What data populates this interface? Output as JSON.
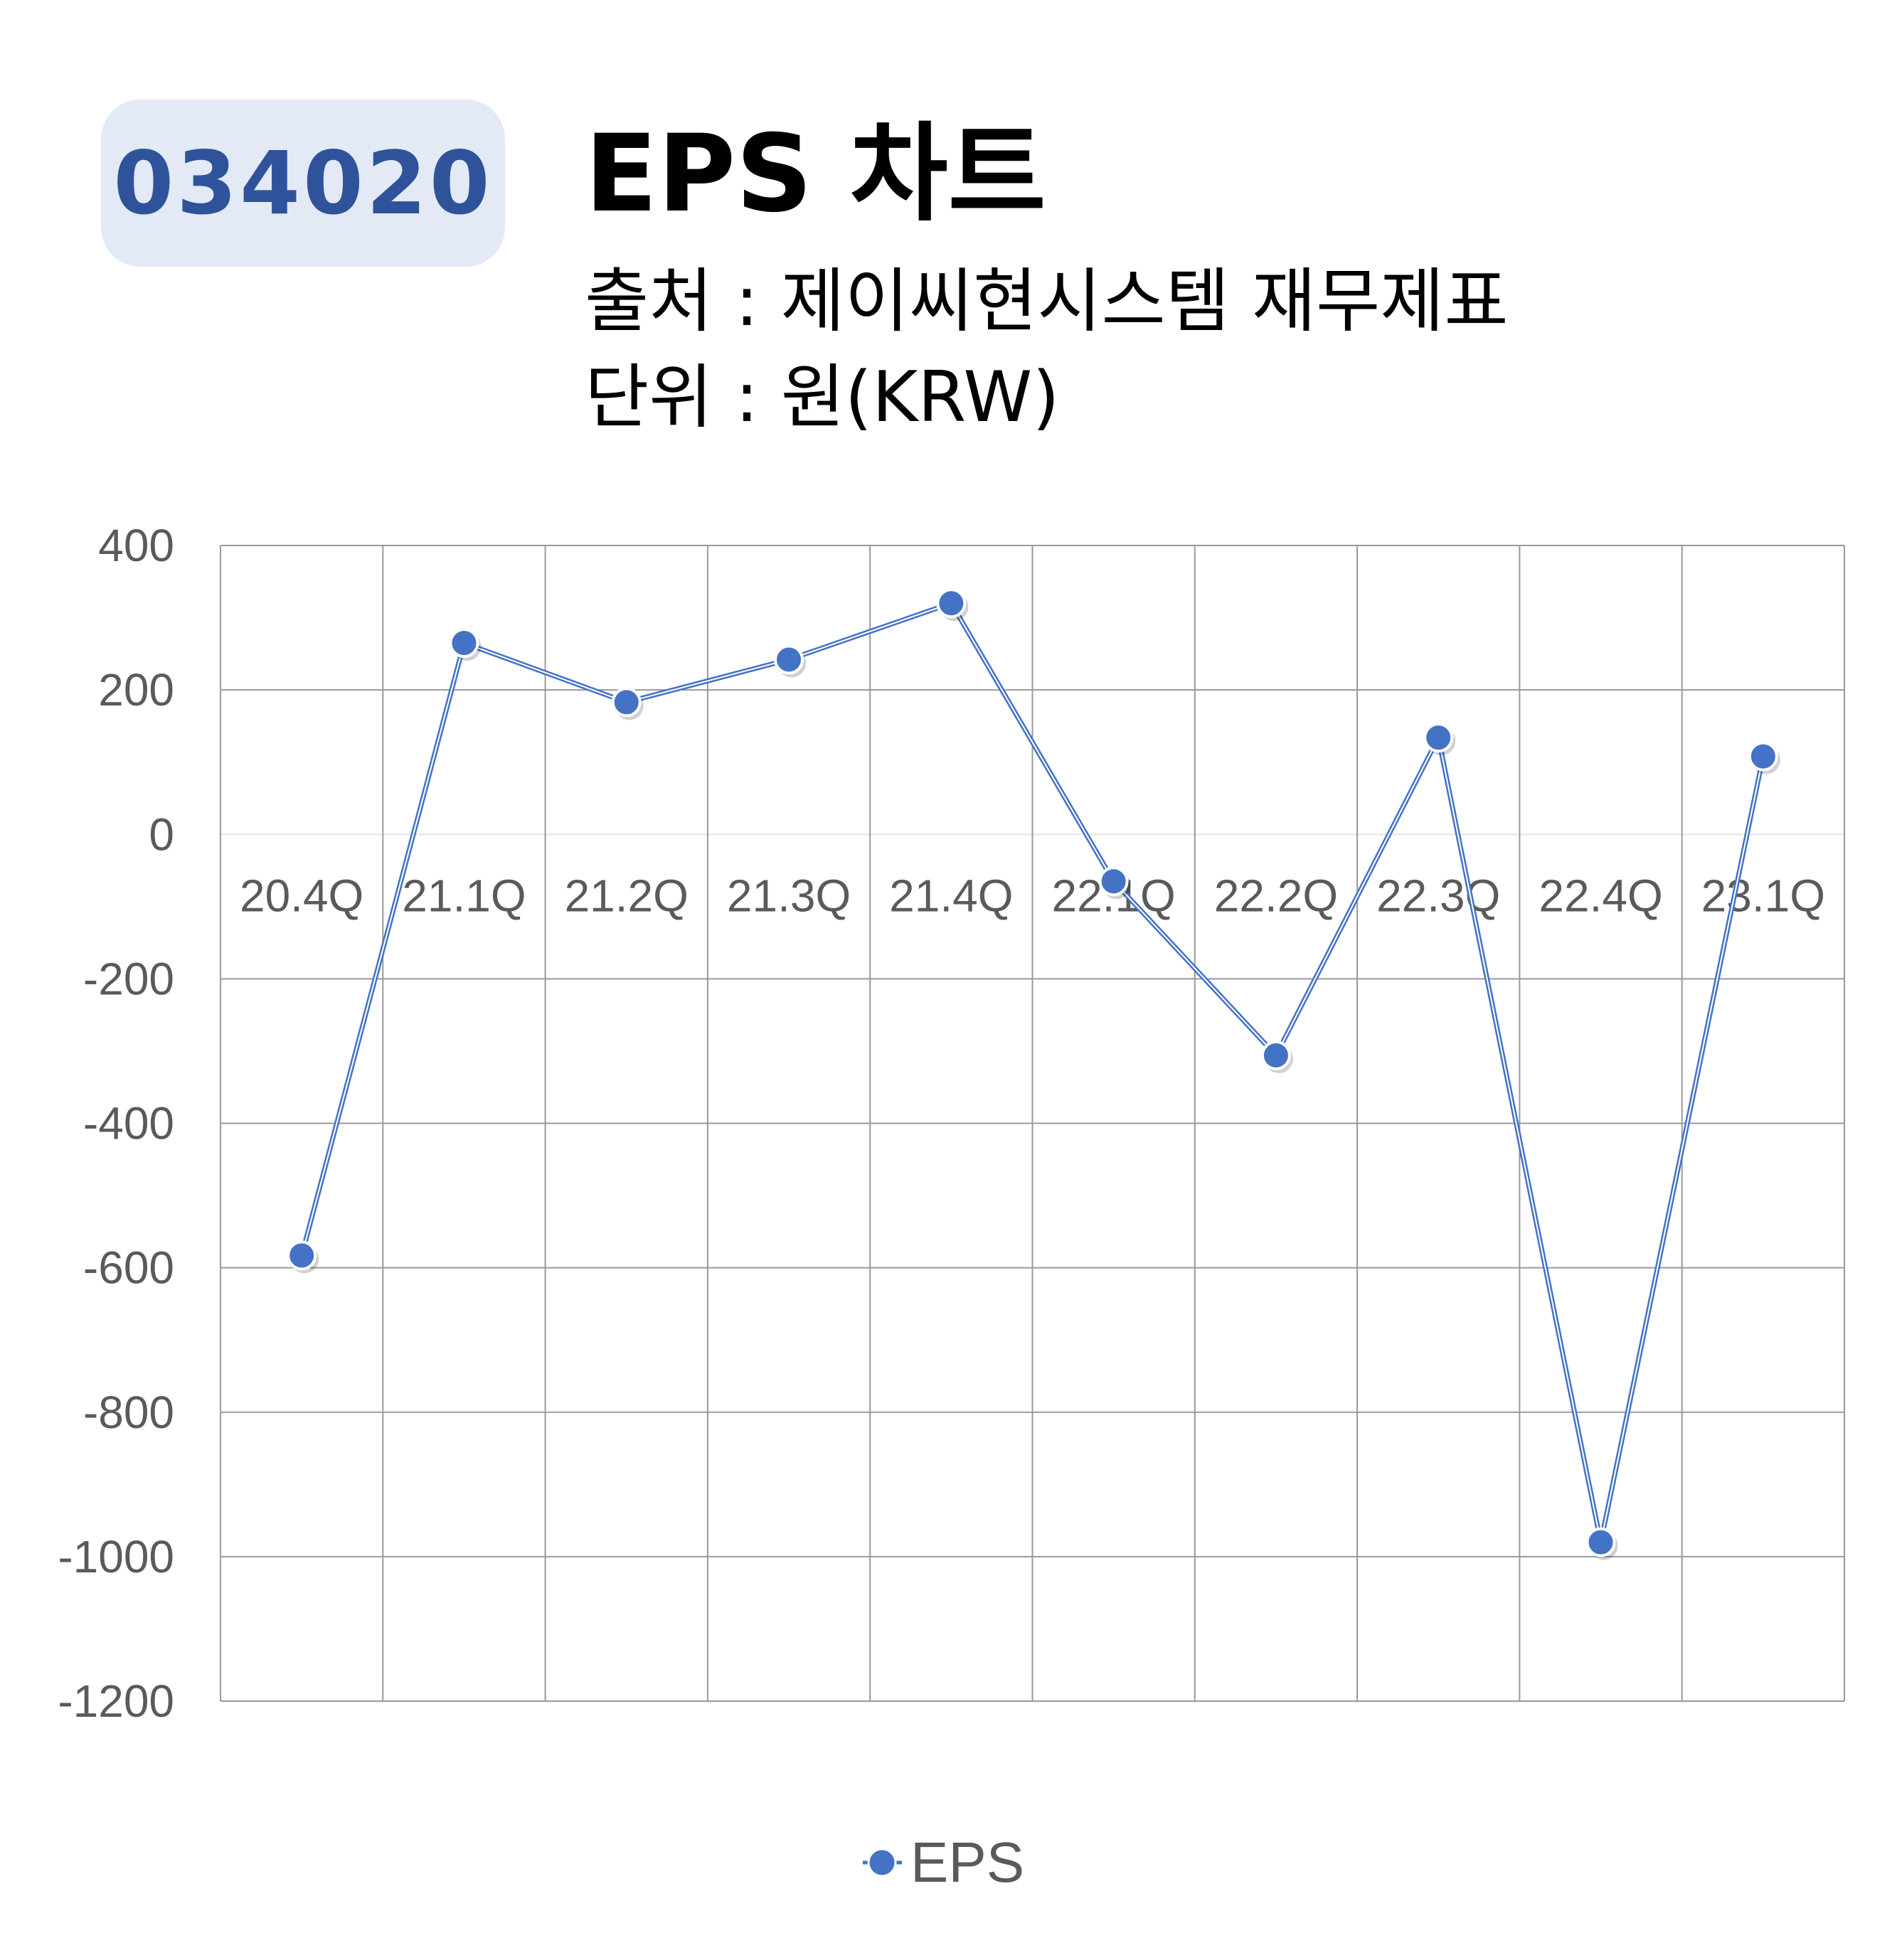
{
  "header": {
    "code": "034020",
    "title": "EPS 차트",
    "source": "출처 : 제이씨현시스템 재무제표",
    "unit": "단위 : 원(KRW)"
  },
  "colors": {
    "badge_bg": "#e3e9f5",
    "badge_text": "#2f539a",
    "series": "#4472c4",
    "grid": "#9a9a9a",
    "tick_text": "#5a5a5a"
  },
  "chart_data": {
    "type": "line",
    "categories": [
      "20.4Q",
      "21.1Q",
      "21.2Q",
      "21.3Q",
      "21.4Q",
      "22.1Q",
      "22.2Q",
      "22.3Q",
      "22.4Q",
      "23.1Q"
    ],
    "series": [
      {
        "name": "EPS",
        "values": [
          -583,
          265,
          183,
          242,
          320,
          -65,
          -306,
          134,
          -980,
          108
        ]
      }
    ],
    "yticks": [
      "400",
      "200",
      "0",
      "-200",
      "-400",
      "-600",
      "-800",
      "-1000",
      "-1200"
    ],
    "ylim": [
      -1200,
      400
    ],
    "grid": true,
    "legend": "bottom"
  }
}
